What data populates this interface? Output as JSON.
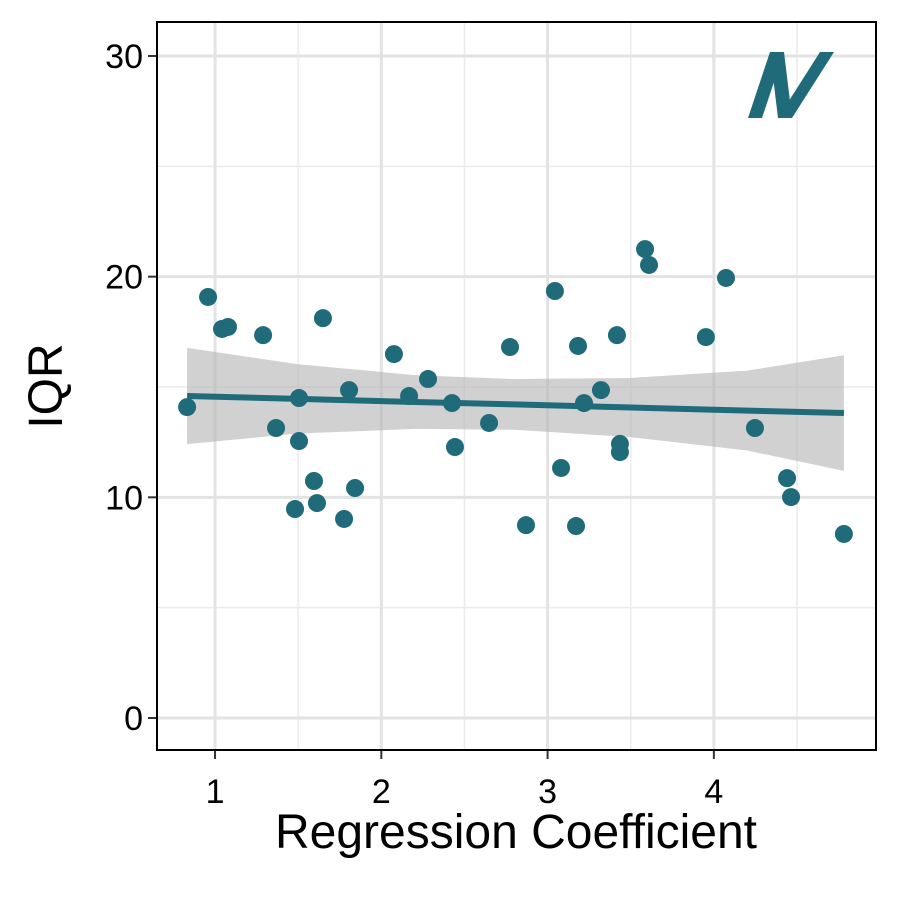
{
  "chart_data": {
    "type": "scatter",
    "x_label": "Regression Coefficient",
    "y_label": "IQR",
    "color": "#1f6b7a",
    "band_color": "#b3b3b3",
    "grid": true,
    "xlim": [
      0.651,
      4.975
    ],
    "ylim": [
      -1.45,
      31.54
    ],
    "xticks": [
      1,
      2,
      3,
      4
    ],
    "yticks": [
      0,
      10,
      20,
      30
    ],
    "x_minor_grid": [
      1.5,
      2.5,
      3.5,
      4.5
    ],
    "y_minor_grid": [
      5,
      15,
      25
    ],
    "x": [
      0.832,
      0.958,
      1.042,
      1.078,
      1.289,
      1.367,
      1.481,
      1.505,
      1.505,
      1.595,
      1.613,
      1.649,
      1.776,
      1.806,
      1.842,
      2.076,
      2.167,
      2.281,
      2.425,
      2.443,
      2.648,
      2.774,
      2.87,
      3.044,
      3.081,
      3.171,
      3.183,
      3.219,
      3.321,
      3.417,
      3.435,
      3.435,
      3.586,
      3.61,
      3.952,
      4.073,
      4.247,
      4.44,
      4.464,
      4.782
    ],
    "y": [
      14.09,
      19.08,
      17.63,
      17.72,
      17.35,
      13.14,
      9.47,
      14.5,
      12.55,
      10.74,
      9.74,
      18.12,
      9.02,
      14.86,
      10.42,
      16.49,
      14.59,
      15.36,
      14.27,
      12.28,
      13.37,
      16.81,
      8.74,
      19.35,
      11.33,
      8.7,
      16.86,
      14.27,
      14.86,
      17.35,
      12.42,
      12.05,
      21.25,
      20.53,
      17.26,
      19.94,
      13.14,
      10.87,
      10.01,
      8.34
    ],
    "fit": {
      "x": [
        0.832,
        1.5,
        2.2,
        2.8,
        3.5,
        4.2,
        4.782
      ],
      "y": [
        14.59,
        14.46,
        14.32,
        14.21,
        14.07,
        13.93,
        13.82
      ],
      "lower": [
        12.41,
        12.89,
        13.1,
        13.06,
        12.73,
        12.12,
        11.2
      ],
      "upper": [
        16.77,
        16.03,
        15.54,
        15.36,
        15.41,
        15.74,
        16.44
      ]
    }
  }
}
